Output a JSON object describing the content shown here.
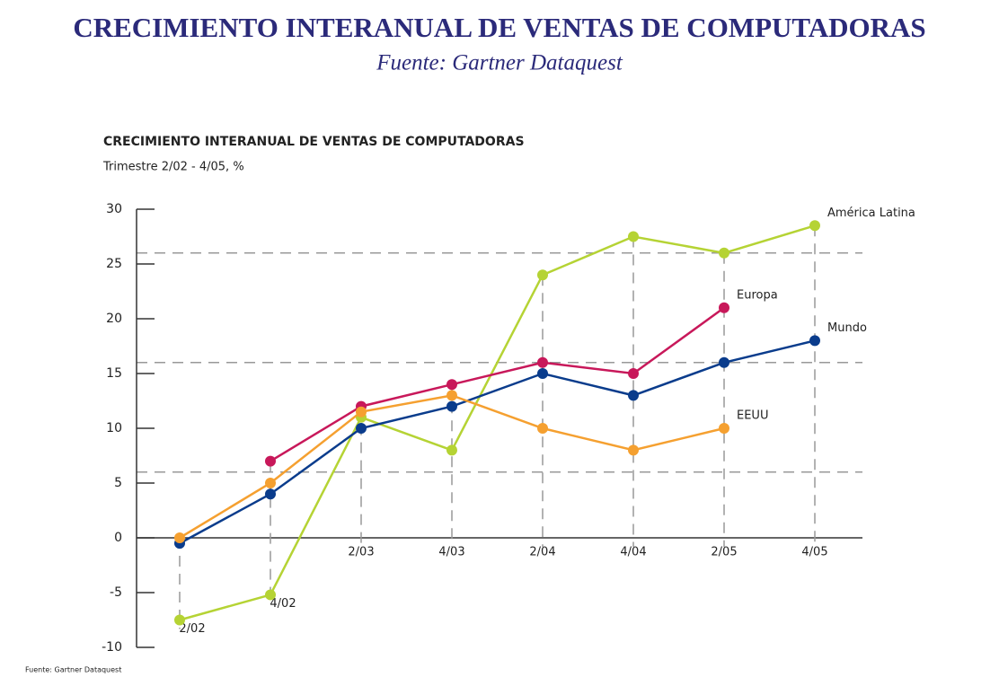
{
  "chart_data": {
    "type": "line",
    "page_title": "CRECIMIENTO INTERANUAL DE VENTAS DE COMPUTADORAS",
    "page_subtitle": "Fuente: Gartner Dataquest",
    "title": "CRECIMIENTO INTERANUAL DE VENTAS DE COMPUTADORAS",
    "subtitle": "Trimestre 2/02 - 4/05, %",
    "footnote": "Fuente: Gartner Dataquest",
    "categories": [
      "2/02",
      "4/02",
      "2/03",
      "4/03",
      "2/04",
      "4/04",
      "2/05",
      "4/05"
    ],
    "series": [
      {
        "name": "América Latina",
        "color": "#b5d334",
        "values": [
          -7.5,
          -5.2,
          11,
          8,
          24,
          27.5,
          26,
          28.5
        ]
      },
      {
        "name": "Europa",
        "color": "#c8185a",
        "values": [
          null,
          7,
          12,
          14,
          16,
          15,
          21,
          null
        ]
      },
      {
        "name": "Mundo",
        "color": "#0a3c8c",
        "values": [
          -0.5,
          4,
          10,
          12,
          15,
          13,
          16,
          18
        ]
      },
      {
        "name": "EEUU",
        "color": "#f5a030",
        "values": [
          0,
          5,
          11.5,
          13,
          10,
          8,
          10,
          null
        ]
      }
    ],
    "ylim": [
      -10,
      30
    ],
    "yticks": [
      -10,
      -5,
      0,
      5,
      10,
      15,
      20,
      25,
      30
    ],
    "reference_lines": [
      6,
      16,
      26
    ]
  }
}
